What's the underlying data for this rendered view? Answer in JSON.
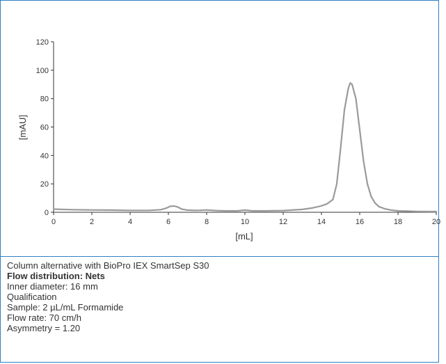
{
  "colors": {
    "border": "#2f7fc4",
    "trace": "#9a9a9a",
    "axis": "#333333",
    "text": "#333333"
  },
  "chart_data": {
    "type": "line",
    "title": "",
    "xlabel": "[mL]",
    "ylabel": "[mAU]",
    "xlim": [
      0,
      20
    ],
    "ylim": [
      0,
      120
    ],
    "xticks": [
      0,
      2,
      4,
      6,
      8,
      10,
      12,
      14,
      16,
      18,
      20
    ],
    "yticks": [
      0,
      20,
      40,
      60,
      80,
      100,
      120
    ],
    "grid": false,
    "legend": "none",
    "series": [
      {
        "color": "#9a9a9a",
        "x": [
          0,
          1,
          2,
          3,
          4,
          5,
          5.6,
          5.9,
          6.1,
          6.3,
          6.5,
          6.7,
          7.0,
          7.5,
          8.0,
          8.5,
          9.0,
          9.6,
          10.0,
          10.4,
          11.0,
          12.0,
          13.0,
          13.5,
          14.0,
          14.3,
          14.6,
          14.8,
          15.0,
          15.2,
          15.4,
          15.5,
          15.6,
          15.8,
          16.0,
          16.2,
          16.4,
          16.6,
          16.8,
          17.0,
          17.3,
          17.6,
          18.0,
          18.5,
          19.0,
          20.0
        ],
        "y": [
          2.2,
          1.8,
          1.6,
          1.5,
          1.3,
          1.3,
          1.8,
          3.0,
          4.2,
          4.4,
          3.6,
          2.2,
          1.5,
          1.3,
          1.6,
          1.2,
          1.0,
          1.0,
          1.5,
          1.0,
          1.0,
          1.2,
          2.0,
          3.0,
          4.5,
          6.0,
          9.0,
          20.0,
          45.0,
          72.0,
          87.0,
          91.0,
          90.0,
          80.0,
          58.0,
          36.0,
          20.0,
          11.0,
          6.5,
          4.0,
          2.5,
          1.6,
          1.0,
          0.8,
          0.6,
          0.5
        ]
      }
    ]
  },
  "caption": {
    "line1": "Column alternative with BioPro IEX SmartSep S30",
    "line2": "Flow distribution: Nets",
    "line3": "Inner diameter: 16 mm",
    "line4": "Qualification",
    "line5": "Sample: 2 µL/mL Formamide",
    "line6": "Flow rate: 70 cm/h",
    "line7": "Asymmetry = 1.20"
  }
}
